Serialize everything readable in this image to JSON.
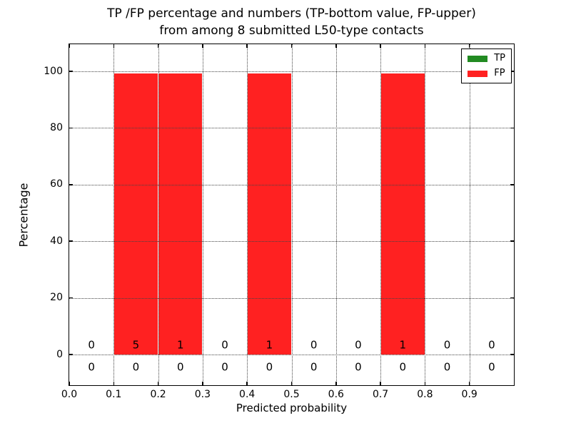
{
  "title": {
    "line1": "TP /FP percentage and numbers (TP-bottom value, FP-upper)",
    "line2": "from among 8 submitted L50-type contacts"
  },
  "legend": {
    "items": [
      {
        "label": "TP",
        "color": "#228b22"
      },
      {
        "label": "FP",
        "color": "#ff2121"
      }
    ]
  },
  "chart_data": {
    "type": "bar",
    "title": "TP /FP percentage and numbers (TP-bottom value, FP-upper) from among 8 submitted L50-type contacts",
    "xlabel": "Predicted probability",
    "ylabel": "Percentage",
    "xlim": [
      0.0,
      1.0
    ],
    "ylim": [
      -11,
      110
    ],
    "grid": true,
    "legend_position": "upper right",
    "x_ticks": [
      "0.0",
      "0.1",
      "0.2",
      "0.3",
      "0.4",
      "0.5",
      "0.6",
      "0.7",
      "0.8",
      "0.9"
    ],
    "y_ticks": [
      0,
      20,
      40,
      60,
      80,
      100
    ],
    "bin_width": 0.1,
    "bin_starts": [
      0.0,
      0.1,
      0.2,
      0.3,
      0.4,
      0.5,
      0.6,
      0.7,
      0.8,
      0.9
    ],
    "series": [
      {
        "name": "TP",
        "color": "#228b22",
        "percent_values": [
          0,
          0,
          0,
          0,
          0,
          0,
          0,
          0,
          0,
          0
        ],
        "counts": [
          0,
          0,
          0,
          0,
          0,
          0,
          0,
          0,
          0,
          0
        ],
        "count_row": "bottom"
      },
      {
        "name": "FP",
        "color": "#ff2121",
        "percent_values": [
          0,
          100,
          100,
          0,
          100,
          0,
          0,
          100,
          0,
          0
        ],
        "counts": [
          0,
          5,
          1,
          0,
          1,
          0,
          0,
          1,
          0,
          0
        ],
        "count_row": "upper"
      }
    ]
  }
}
